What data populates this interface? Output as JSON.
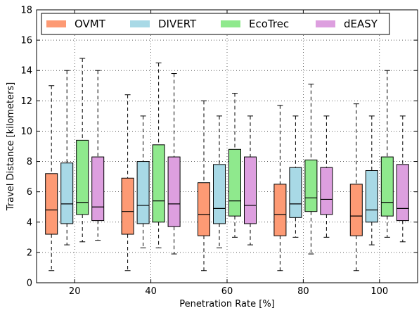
{
  "chart_data": {
    "type": "boxplot",
    "xlabel": "Penetration Rate [%]",
    "ylabel": "Travel Distance [kilometers]",
    "ylim": [
      0,
      18
    ],
    "yticks": [
      0,
      2,
      4,
      6,
      8,
      10,
      12,
      14,
      16,
      18
    ],
    "categories": [
      "20",
      "40",
      "60",
      "80",
      "100"
    ],
    "grid": true,
    "legend_position": "top",
    "series": [
      {
        "name": "OVMT",
        "color": "#fd9a74",
        "boxes": [
          {
            "min": 0.8,
            "q1": 3.2,
            "median": 4.8,
            "q3": 7.2,
            "max": 13.0
          },
          {
            "min": 0.8,
            "q1": 3.2,
            "median": 4.7,
            "q3": 6.9,
            "max": 12.4
          },
          {
            "min": 0.8,
            "q1": 3.1,
            "median": 4.5,
            "q3": 6.6,
            "max": 12.0
          },
          {
            "min": 0.8,
            "q1": 3.1,
            "median": 4.5,
            "q3": 6.5,
            "max": 11.7
          },
          {
            "min": 0.8,
            "q1": 3.1,
            "median": 4.4,
            "q3": 6.5,
            "max": 11.8
          }
        ]
      },
      {
        "name": "DIVERT",
        "color": "#a8d9e6",
        "boxes": [
          {
            "min": 2.5,
            "q1": 3.9,
            "median": 5.2,
            "q3": 7.9,
            "max": 14.0
          },
          {
            "min": 2.3,
            "q1": 3.9,
            "median": 5.1,
            "q3": 8.0,
            "max": 11.0
          },
          {
            "min": 2.3,
            "q1": 3.9,
            "median": 4.9,
            "q3": 7.8,
            "max": 11.0
          },
          {
            "min": 3.0,
            "q1": 4.3,
            "median": 5.2,
            "q3": 7.6,
            "max": 11.0
          },
          {
            "min": 2.5,
            "q1": 4.0,
            "median": 4.8,
            "q3": 7.4,
            "max": 11.0
          }
        ]
      },
      {
        "name": "EcoTrec",
        "color": "#8fe98d",
        "boxes": [
          {
            "min": 2.7,
            "q1": 4.5,
            "median": 5.3,
            "q3": 9.4,
            "max": 14.8
          },
          {
            "min": 2.3,
            "q1": 4.0,
            "median": 5.4,
            "q3": 9.1,
            "max": 14.5
          },
          {
            "min": 3.0,
            "q1": 4.4,
            "median": 5.4,
            "q3": 8.8,
            "max": 12.5
          },
          {
            "min": 1.9,
            "q1": 4.7,
            "median": 5.6,
            "q3": 8.1,
            "max": 13.1
          },
          {
            "min": 3.0,
            "q1": 4.4,
            "median": 5.3,
            "q3": 8.3,
            "max": 14.0
          }
        ]
      },
      {
        "name": "dEASY",
        "color": "#dd9fdf",
        "boxes": [
          {
            "min": 2.8,
            "q1": 4.1,
            "median": 5.0,
            "q3": 8.3,
            "max": 14.0
          },
          {
            "min": 1.9,
            "q1": 3.7,
            "median": 5.2,
            "q3": 8.3,
            "max": 13.8
          },
          {
            "min": 2.5,
            "q1": 3.9,
            "median": 5.1,
            "q3": 8.3,
            "max": 11.0
          },
          {
            "min": 3.0,
            "q1": 4.5,
            "median": 5.5,
            "q3": 7.6,
            "max": 11.0
          },
          {
            "min": 2.7,
            "q1": 4.1,
            "median": 4.9,
            "q3": 7.8,
            "max": 11.0
          }
        ]
      }
    ]
  }
}
